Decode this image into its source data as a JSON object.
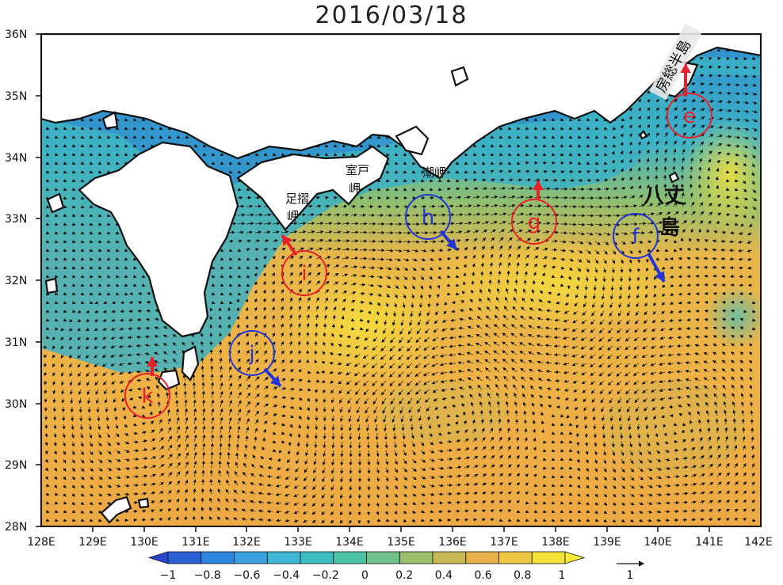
{
  "title": "2016/03/18",
  "lat_ticks": [
    "28N",
    "29N",
    "30N",
    "31N",
    "32N",
    "33N",
    "34N",
    "35N",
    "36N"
  ],
  "lon_ticks": [
    "128E",
    "129E",
    "130E",
    "131E",
    "132E",
    "133E",
    "134E",
    "135E",
    "136E",
    "137E",
    "138E",
    "139E",
    "140E",
    "141E",
    "142E"
  ],
  "colorbar": {
    "ticks": [
      "−1",
      "−0.8",
      "−0.6",
      "−0.4",
      "−0.2",
      "0",
      "0.2",
      "0.4",
      "0.6",
      "0.8",
      "1"
    ],
    "colors": [
      "#2a5fd6",
      "#2f86e0",
      "#3aa3df",
      "#3fb6d6",
      "#3dbdc2",
      "#4cc3a6",
      "#6fc28a",
      "#9bbf6c",
      "#c6b956",
      "#e7b24a",
      "#f0c742",
      "#f3e13a"
    ],
    "vector_scale_label": "1"
  },
  "place_labels": {
    "ashizuri": "足摺岬",
    "muroto": "室戸岬",
    "shionomisaki": "潮岬",
    "hachijo": "八丈島",
    "boso": "房総半島"
  },
  "markers": [
    {
      "label": "e",
      "color": "#e8202a",
      "arrow": "north"
    },
    {
      "label": "f",
      "color": "#2236d8",
      "arrow": "south-east"
    },
    {
      "label": "g",
      "color": "#e8202a",
      "arrow": "north"
    },
    {
      "label": "h",
      "color": "#2236d8",
      "arrow": "south-east"
    },
    {
      "label": "i",
      "color": "#e8202a",
      "arrow": "north-west"
    },
    {
      "label": "j",
      "color": "#2236d8",
      "arrow": "south-east"
    },
    {
      "label": "k",
      "color": "#e8202a",
      "arrow": "north"
    }
  ],
  "colors": {
    "land": "#ffffff",
    "coast": "#111111",
    "warm": "#f0b040",
    "cool": "#3fa9c9"
  }
}
